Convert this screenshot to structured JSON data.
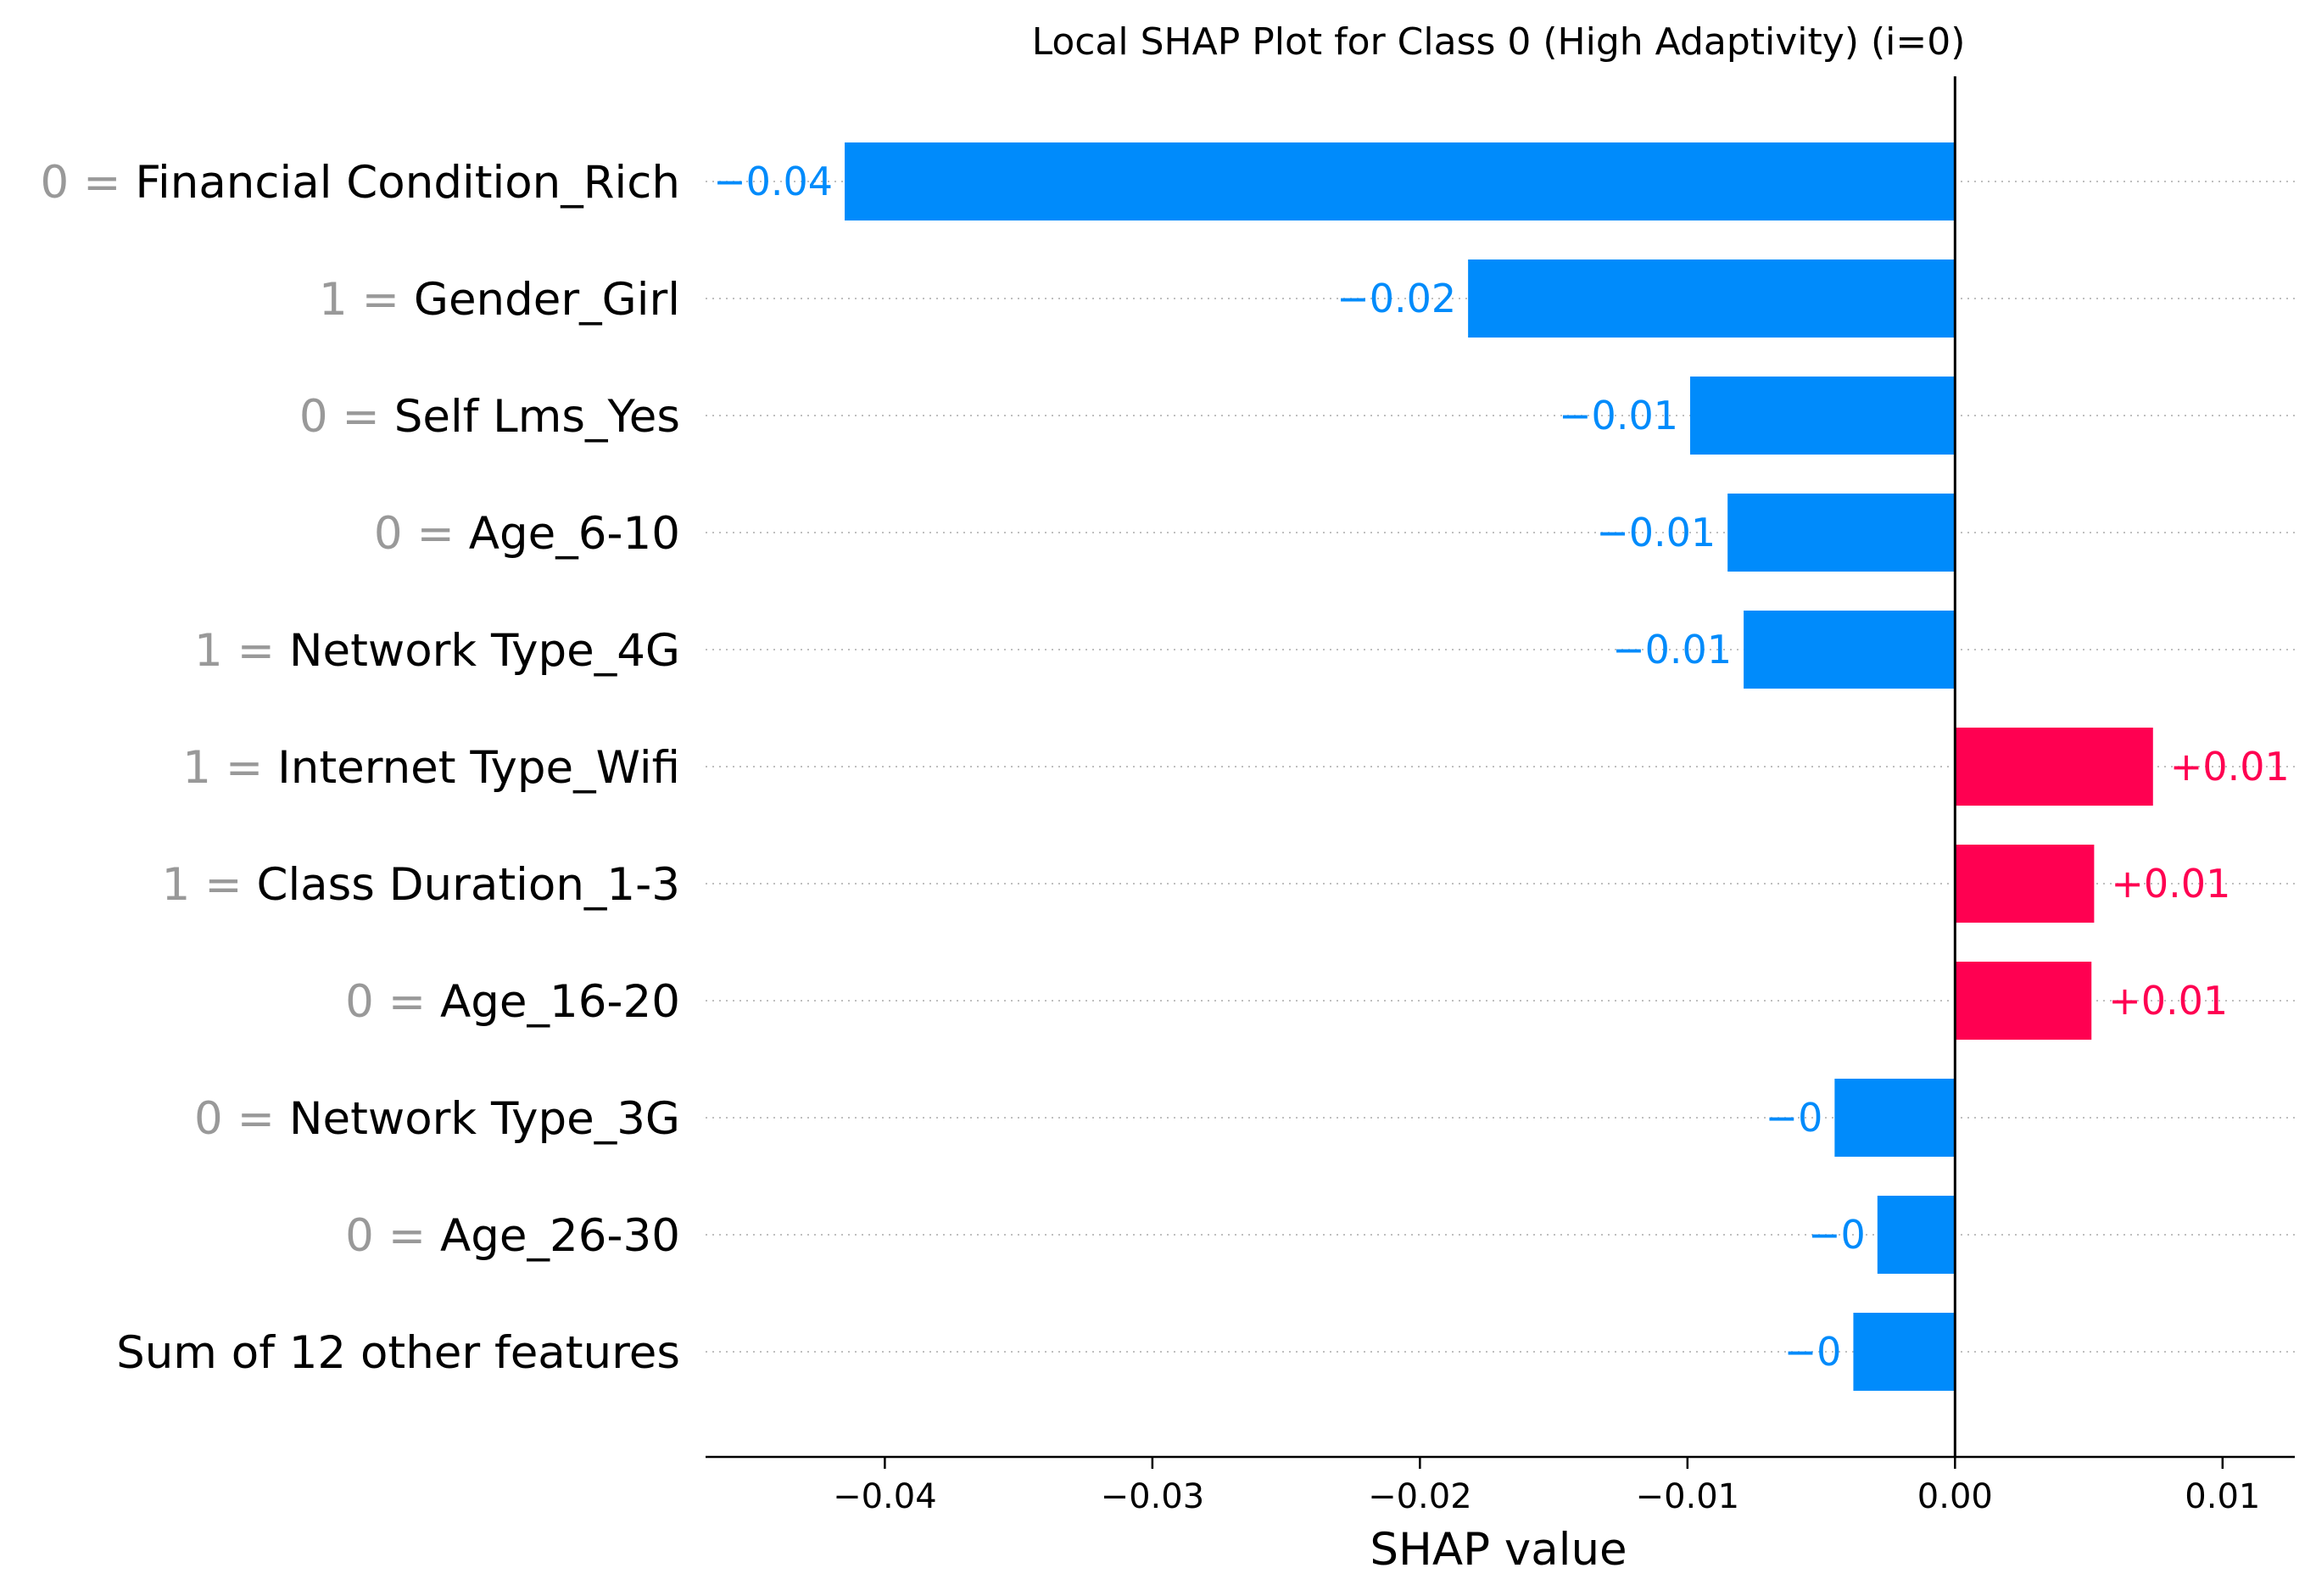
{
  "chart_data": {
    "type": "bar",
    "orientation": "horizontal",
    "title": "Local SHAP Plot for Class 0 (High Adaptivity) (i=0)",
    "xlabel": "SHAP value",
    "ylabel": "",
    "xlim": [
      -0.0467,
      0.0127
    ],
    "xticks": [
      -0.04,
      -0.03,
      -0.02,
      -0.01,
      0.0,
      0.01
    ],
    "xtick_labels": [
      "−0.04",
      "−0.03",
      "−0.02",
      "−0.01",
      "0.00",
      "0.01"
    ],
    "grid": "horizontal dotted guide lines per feature row",
    "colors": {
      "negative": "#008bfb",
      "positive": "#ff0051",
      "feature_value": "#999999",
      "zero_line": "#000000"
    },
    "features": [
      {
        "feature_value": "0",
        "name": "Financial Condition_Rich",
        "value": -0.0415,
        "label": "−0.04"
      },
      {
        "feature_value": "1",
        "name": "Gender_Girl",
        "value": -0.0182,
        "label": "−0.02"
      },
      {
        "feature_value": "0",
        "name": "Self Lms_Yes",
        "value": -0.0099,
        "label": "−0.01"
      },
      {
        "feature_value": "0",
        "name": "Age_6-10",
        "value": -0.0085,
        "label": "−0.01"
      },
      {
        "feature_value": "1",
        "name": "Network Type_4G",
        "value": -0.0079,
        "label": "−0.01"
      },
      {
        "feature_value": "1",
        "name": "Internet Type_Wifi",
        "value": 0.0074,
        "label": "+0.01"
      },
      {
        "feature_value": "1",
        "name": "Class Duration_1-3",
        "value": 0.0052,
        "label": "+0.01"
      },
      {
        "feature_value": "0",
        "name": "Age_16-20",
        "value": 0.0051,
        "label": "+0.01"
      },
      {
        "feature_value": "0",
        "name": "Network Type_3G",
        "value": -0.0045,
        "label": "−0"
      },
      {
        "feature_value": "0",
        "name": "Age_26-30",
        "value": -0.0029,
        "label": "−0"
      },
      {
        "feature_value": "",
        "name": "Sum of 12 other features",
        "value": -0.0038,
        "label": "−0"
      }
    ]
  }
}
